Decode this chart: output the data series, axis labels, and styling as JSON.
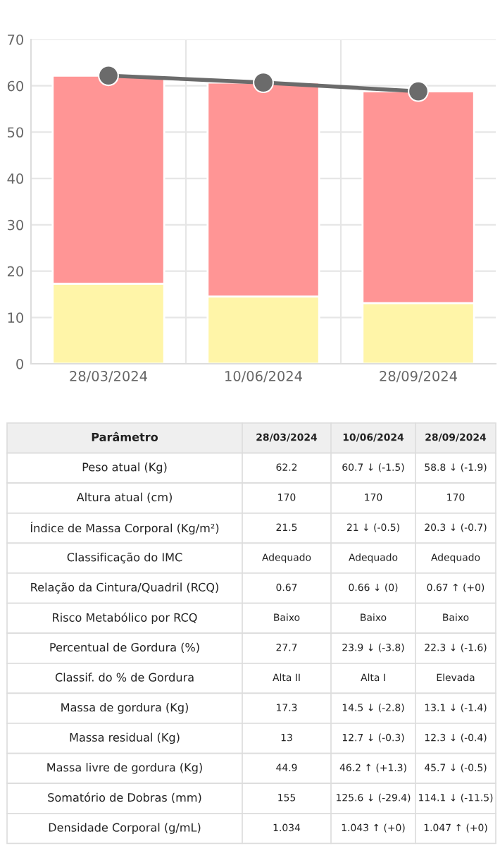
{
  "chart_data": [
    {
      "type": "bar",
      "stacked": true,
      "categories": [
        "28/03/2024",
        "10/06/2024",
        "28/09/2024"
      ],
      "series": [
        {
          "color": "#fff5a8",
          "values": [
            17.3,
            14.5,
            13.1
          ]
        },
        {
          "color": "#ff9595",
          "values": [
            44.9,
            46.2,
            45.7
          ]
        },
        {
          "type": "line",
          "color": "#6b6b6b",
          "values": [
            62.2,
            60.7,
            58.8
          ]
        }
      ],
      "ylim": [
        0,
        70
      ],
      "yticks": [
        0,
        10,
        20,
        30,
        40,
        50,
        60,
        70
      ],
      "grid": true,
      "marker": "circle",
      "line_style": "solid"
    },
    {
      "type": "other",
      "annotations": [
        "Parâmetro",
        "28/03/2024",
        "10/06/2024",
        "28/09/2024",
        "Peso atual (Kg)",
        "62.2",
        "60.7 ↓ (-1.5)",
        "58.8 ↓ (-1.9)",
        "Altura atual (cm)",
        "170",
        "170",
        "170",
        "Índice de Massa Corporal (Kg/m²)",
        "21.5",
        "21 ↓ (-0.5)",
        "20.3 ↓ (-0.7)",
        "Classificação do IMC",
        "Adequado",
        "Adequado",
        "Adequado",
        "Relação da Cintura/Quadril (RCQ)",
        "0.67",
        "0.66 ↓ (0)",
        "0.67 ↑ (+0)",
        "Risco Metabólico por RCQ",
        "Baixo",
        "Baixo",
        "Baixo",
        "Percentual de Gordura (%)",
        "27.7",
        "23.9 ↓ (-3.8)",
        "22.3 ↓ (-1.6)",
        "Classif. do % de Gordura",
        "Alta II",
        "Alta I",
        "Elevada",
        "Massa de gordura (Kg)",
        "17.3",
        "14.5 ↓ (-2.8)",
        "13.1 ↓ (-1.4)",
        "Massa residual (Kg)",
        "13",
        "12.7 ↓ (-0.3)",
        "12.3 ↓ (-0.4)",
        "Massa livre de gordura (Kg)",
        "44.9",
        "46.2 ↑ (+1.3)",
        "45.7 ↓ (-0.5)",
        "Somatório de Dobras (mm)",
        "155",
        "125.6 ↓ (-29.4)",
        "114.1 ↓ (-11.5)",
        "Densidade Corporal (g/mL)",
        "1.034",
        "1.043 ↑ (+0)",
        "1.047 ↑ (+0)"
      ]
    }
  ]
}
